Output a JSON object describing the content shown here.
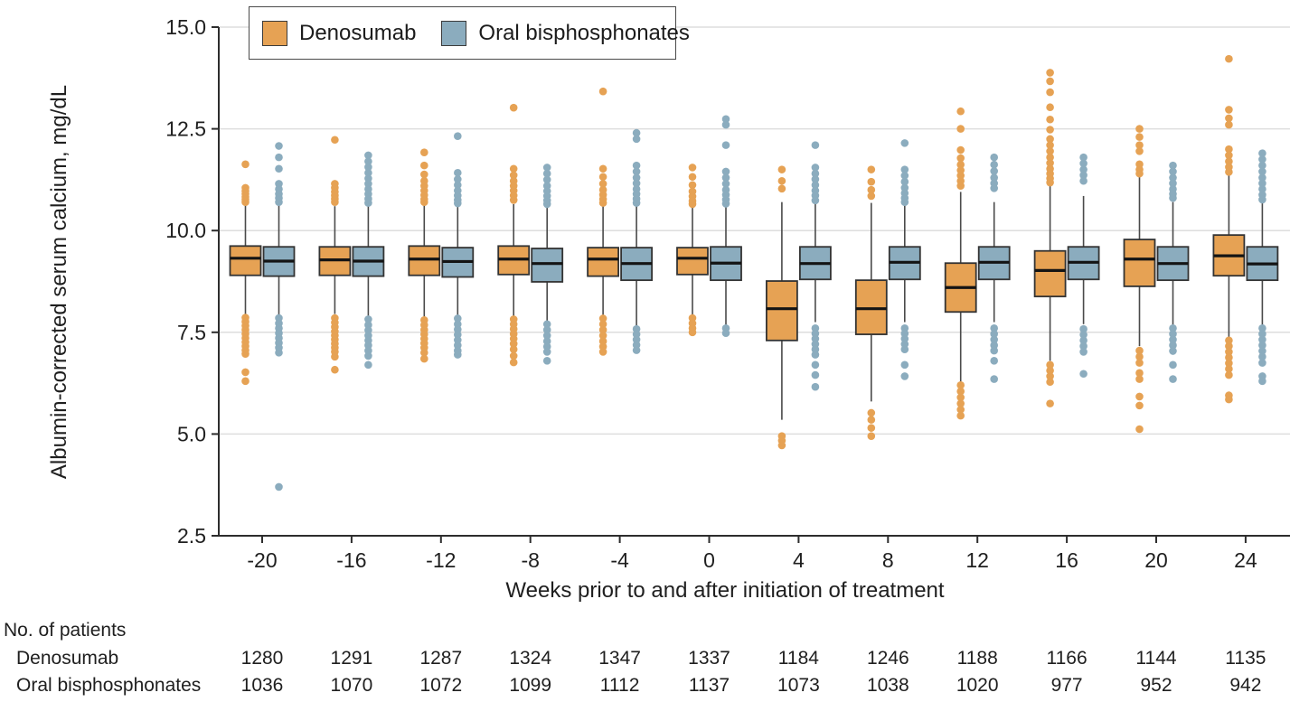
{
  "chart_data": {
    "type": "boxplot",
    "title": "",
    "ylabel": "Albumin-corrected serum calcium, mg/dL",
    "xlabel": "Weeks prior to and after initiation of treatment",
    "ylim": [
      2.5,
      15.0
    ],
    "yticks": [
      2.5,
      5.0,
      7.5,
      10.0,
      12.5,
      15.0
    ],
    "grid": true,
    "legend_position": "top-left",
    "categories": [
      "-20",
      "-16",
      "-12",
      "-8",
      "-4",
      "0",
      "4",
      "8",
      "12",
      "16",
      "20",
      "24"
    ],
    "style": {
      "grid_color": "#dedede",
      "axis_color": "#2d2d2d",
      "whisker_color": "#4a4a4a",
      "box_border_color": "#333333",
      "median_color": "#141414",
      "text_color": "#1f1f1f"
    },
    "series": [
      {
        "name": "Denosumab",
        "color": "#E6A254",
        "boxes": [
          {
            "q1": 8.9,
            "median": 9.32,
            "q3": 9.62,
            "whisker_low": 7.95,
            "whisker_high": 10.62,
            "outliers_high": [
              11.63,
              11.05,
              10.97,
              10.9,
              10.83,
              10.76,
              10.7
            ],
            "outliers_low": [
              7.86,
              7.76,
              7.66,
              7.56,
              7.46,
              7.36,
              7.26,
              7.16,
              7.06,
              6.97,
              6.52,
              6.3
            ]
          },
          {
            "q1": 8.9,
            "median": 9.28,
            "q3": 9.6,
            "whisker_low": 7.95,
            "whisker_high": 10.6,
            "outliers_high": [
              12.23,
              11.15,
              11.05,
              10.95,
              10.86,
              10.78,
              10.7
            ],
            "outliers_low": [
              7.85,
              7.74,
              7.63,
              7.52,
              7.42,
              7.32,
              7.22,
              7.12,
              7.02,
              6.9,
              6.58
            ]
          },
          {
            "q1": 8.9,
            "median": 9.3,
            "q3": 9.62,
            "whisker_low": 7.88,
            "whisker_high": 10.65,
            "outliers_high": [
              11.92,
              11.6,
              11.38,
              11.22,
              11.1,
              10.98,
              10.87,
              10.77,
              10.7
            ],
            "outliers_low": [
              7.8,
              7.68,
              7.56,
              7.45,
              7.34,
              7.23,
              7.12,
              7.0,
              6.85
            ]
          },
          {
            "q1": 8.92,
            "median": 9.3,
            "q3": 9.62,
            "whisker_low": 7.9,
            "whisker_high": 10.65,
            "outliers_high": [
              13.02,
              11.52,
              11.36,
              11.22,
              11.1,
              10.98,
              10.86,
              10.75
            ],
            "outliers_low": [
              7.82,
              7.7,
              7.58,
              7.46,
              7.34,
              7.22,
              7.08,
              6.92,
              6.76
            ]
          },
          {
            "q1": 8.88,
            "median": 9.3,
            "q3": 9.58,
            "whisker_low": 7.9,
            "whisker_high": 10.62,
            "outliers_high": [
              13.42,
              11.52,
              11.32,
              11.15,
              11.0,
              10.88,
              10.77,
              10.68
            ],
            "outliers_low": [
              7.84,
              7.7,
              7.56,
              7.42,
              7.28,
              7.15,
              7.02
            ]
          },
          {
            "q1": 8.92,
            "median": 9.32,
            "q3": 9.58,
            "whisker_low": 7.92,
            "whisker_high": 10.6,
            "outliers_high": [
              11.55,
              11.32,
              11.12,
              10.96,
              10.84,
              10.73,
              10.65
            ],
            "outliers_low": [
              7.85,
              7.72,
              7.6,
              7.5
            ]
          },
          {
            "q1": 7.3,
            "median": 8.08,
            "q3": 8.76,
            "whisker_low": 5.35,
            "whisker_high": 10.7,
            "outliers_high": [
              11.5,
              11.22,
              11.03
            ],
            "outliers_low": [
              4.95,
              4.84,
              4.72
            ]
          },
          {
            "q1": 7.45,
            "median": 8.08,
            "q3": 8.78,
            "whisker_low": 5.8,
            "whisker_high": 10.68,
            "outliers_high": [
              11.5,
              11.2,
              11.0,
              10.85
            ],
            "outliers_low": [
              5.52,
              5.35,
              5.15,
              4.95
            ]
          },
          {
            "q1": 8.0,
            "median": 8.6,
            "q3": 9.2,
            "whisker_low": 6.28,
            "whisker_high": 10.95,
            "outliers_high": [
              12.93,
              12.5,
              11.98,
              11.78,
              11.62,
              11.48,
              11.35,
              11.22,
              11.1
            ],
            "outliers_low": [
              6.2,
              6.05,
              5.9,
              5.75,
              5.6,
              5.45
            ]
          },
          {
            "q1": 8.38,
            "median": 9.02,
            "q3": 9.5,
            "whisker_low": 6.8,
            "whisker_high": 11.1,
            "outliers_high": [
              13.88,
              13.67,
              13.4,
              13.03,
              12.73,
              12.48,
              12.25,
              12.1,
              11.95,
              11.8,
              11.66,
              11.52,
              11.4,
              11.28,
              11.18
            ],
            "outliers_low": [
              6.7,
              6.56,
              6.42,
              6.28,
              5.75
            ]
          },
          {
            "q1": 8.63,
            "median": 9.3,
            "q3": 9.78,
            "whisker_low": 7.16,
            "whisker_high": 11.35,
            "outliers_high": [
              12.5,
              12.3,
              12.1,
              11.95,
              11.63,
              11.5,
              11.4
            ],
            "outliers_low": [
              7.05,
              6.9,
              6.75,
              6.5,
              6.35,
              5.92,
              5.7,
              5.12
            ]
          },
          {
            "q1": 8.89,
            "median": 9.38,
            "q3": 9.89,
            "whisker_low": 7.38,
            "whisker_high": 11.37,
            "outliers_high": [
              14.22,
              12.97,
              12.76,
              12.6,
              12.0,
              11.85,
              11.7,
              11.56,
              11.44
            ],
            "outliers_low": [
              7.3,
              7.16,
              7.02,
              6.88,
              6.74,
              6.6,
              6.45,
              5.95,
              5.85
            ]
          }
        ]
      },
      {
        "name": "Oral bisphosphonates",
        "color": "#8BACBE",
        "boxes": [
          {
            "q1": 8.88,
            "median": 9.25,
            "q3": 9.6,
            "whisker_low": 7.92,
            "whisker_high": 10.63,
            "outliers_high": [
              12.08,
              11.8,
              11.52,
              11.15,
              11.02,
              10.9,
              10.8,
              10.7
            ],
            "outliers_low": [
              7.85,
              7.72,
              7.6,
              7.48,
              7.36,
              7.24,
              7.12,
              7.0,
              3.7
            ]
          },
          {
            "q1": 8.88,
            "median": 9.25,
            "q3": 9.6,
            "whisker_low": 7.9,
            "whisker_high": 10.6,
            "outliers_high": [
              11.85,
              11.7,
              11.56,
              11.42,
              11.28,
              11.15,
              11.02,
              10.9,
              10.78,
              10.68
            ],
            "outliers_low": [
              7.82,
              7.68,
              7.55,
              7.42,
              7.3,
              7.18,
              7.05,
              6.92,
              6.7
            ]
          },
          {
            "q1": 8.86,
            "median": 9.24,
            "q3": 9.58,
            "whisker_low": 7.9,
            "whisker_high": 10.62,
            "outliers_high": [
              12.32,
              11.42,
              11.26,
              11.12,
              10.98,
              10.86,
              10.75,
              10.67
            ],
            "outliers_low": [
              7.84,
              7.7,
              7.57,
              7.44,
              7.31,
              7.18,
              7.05,
              6.95
            ]
          },
          {
            "q1": 8.74,
            "median": 9.19,
            "q3": 9.56,
            "whisker_low": 7.76,
            "whisker_high": 10.6,
            "outliers_high": [
              11.55,
              11.4,
              11.25,
              11.1,
              10.97,
              10.85,
              10.74,
              10.65
            ],
            "outliers_low": [
              7.7,
              7.56,
              7.42,
              7.28,
              7.15,
              7.02,
              6.8
            ]
          },
          {
            "q1": 8.78,
            "median": 9.19,
            "q3": 9.58,
            "whisker_low": 7.65,
            "whisker_high": 10.6,
            "outliers_high": [
              12.4,
              12.25,
              11.6,
              11.45,
              11.3,
              11.16,
              11.02,
              10.9,
              10.78,
              10.68
            ],
            "outliers_low": [
              7.58,
              7.45,
              7.32,
              7.19,
              7.06
            ]
          },
          {
            "q1": 8.78,
            "median": 9.2,
            "q3": 9.6,
            "whisker_low": 7.64,
            "whisker_high": 10.62,
            "outliers_high": [
              12.74,
              12.6,
              12.1,
              11.45,
              11.3,
              11.15,
              11.0,
              10.88,
              10.76,
              10.66
            ],
            "outliers_low": [
              7.6,
              7.48
            ]
          },
          {
            "q1": 8.8,
            "median": 9.19,
            "q3": 9.6,
            "whisker_low": 7.75,
            "whisker_high": 10.66,
            "outliers_high": [
              12.1,
              11.55,
              11.4,
              11.26,
              11.12,
              10.98,
              10.86,
              10.74
            ],
            "outliers_low": [
              7.6,
              7.47,
              7.34,
              7.21,
              7.08,
              6.95,
              6.7,
              6.45,
              6.16
            ]
          },
          {
            "q1": 8.8,
            "median": 9.22,
            "q3": 9.6,
            "whisker_low": 7.75,
            "whisker_high": 10.62,
            "outliers_high": [
              12.15,
              11.5,
              11.35,
              11.2,
              11.05,
              10.92,
              10.8,
              10.7
            ],
            "outliers_low": [
              7.6,
              7.47,
              7.34,
              7.21,
              7.08,
              6.7,
              6.42
            ]
          },
          {
            "q1": 8.8,
            "median": 9.22,
            "q3": 9.6,
            "whisker_low": 7.75,
            "whisker_high": 10.7,
            "outliers_high": [
              11.8,
              11.62,
              11.46,
              11.3,
              11.16,
              11.04
            ],
            "outliers_low": [
              7.6,
              7.46,
              7.32,
              7.18,
              7.05,
              6.8,
              6.35
            ]
          },
          {
            "q1": 8.8,
            "median": 9.22,
            "q3": 9.6,
            "whisker_low": 7.7,
            "whisker_high": 10.85,
            "outliers_high": [
              11.8,
              11.65,
              11.5,
              11.36,
              11.22
            ],
            "outliers_low": [
              7.58,
              7.44,
              7.3,
              7.16,
              7.02,
              6.48
            ]
          },
          {
            "q1": 8.78,
            "median": 9.19,
            "q3": 9.6,
            "whisker_low": 7.64,
            "whisker_high": 10.7,
            "outliers_high": [
              11.6,
              11.45,
              11.3,
              11.16,
              11.02,
              10.9,
              10.8
            ],
            "outliers_low": [
              7.6,
              7.46,
              7.32,
              7.18,
              7.04,
              6.7,
              6.35
            ]
          },
          {
            "q1": 8.78,
            "median": 9.18,
            "q3": 9.6,
            "whisker_low": 7.65,
            "whisker_high": 10.7,
            "outliers_high": [
              11.9,
              11.75,
              11.6,
              11.45,
              11.3,
              11.16,
              11.02,
              10.88,
              10.76
            ],
            "outliers_low": [
              7.6,
              7.46,
              7.32,
              7.18,
              7.04,
              6.9,
              6.75,
              6.42,
              6.3
            ]
          }
        ]
      }
    ]
  },
  "legend": {
    "items": [
      {
        "label": "Denosumab",
        "color": "#E6A254"
      },
      {
        "label": "Oral bisphosphonates",
        "color": "#8BACBE"
      }
    ]
  },
  "patients_table": {
    "title": "No. of patients",
    "rows": [
      {
        "label": "Denosumab",
        "values": [
          1280,
          1291,
          1287,
          1324,
          1347,
          1337,
          1184,
          1246,
          1188,
          1166,
          1144,
          1135
        ]
      },
      {
        "label": "Oral bisphosphonates",
        "values": [
          1036,
          1070,
          1072,
          1099,
          1112,
          1137,
          1073,
          1038,
          1020,
          977,
          952,
          942
        ]
      }
    ]
  }
}
